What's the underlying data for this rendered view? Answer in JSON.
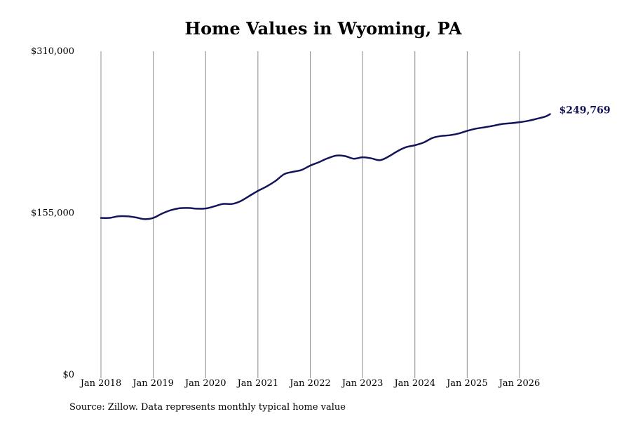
{
  "chart_data": {
    "type": "line",
    "title": "Home Values in Wyoming, PA",
    "source": "Source: Zillow. Data represents monthly typical home value",
    "ylim": [
      0,
      310000
    ],
    "y_ticks": [
      {
        "value": 310000,
        "label": "$310,000"
      },
      {
        "value": 155000,
        "label": "$155,000"
      },
      {
        "value": 0,
        "label": "$0"
      }
    ],
    "x_ticks": [
      {
        "value": "2018-01",
        "label": "Jan 2018"
      },
      {
        "value": "2019-01",
        "label": "Jan 2019"
      },
      {
        "value": "2020-01",
        "label": "Jan 2020"
      },
      {
        "value": "2021-01",
        "label": "Jan 2021"
      },
      {
        "value": "2022-01",
        "label": "Jan 2022"
      },
      {
        "value": "2023-01",
        "label": "Jan 2023"
      },
      {
        "value": "2024-01",
        "label": "Jan 2024"
      },
      {
        "value": "2025-01",
        "label": "Jan 2025"
      },
      {
        "value": "2026-01",
        "label": "Jan 2026"
      }
    ],
    "grid": "vertical",
    "line_color": "#14145a",
    "end_label": "$249,769",
    "series": [
      {
        "points": [
          [
            "2018-01",
            150200
          ],
          [
            "2018-03",
            150300
          ],
          [
            "2018-05",
            151800
          ],
          [
            "2018-07",
            151800
          ],
          [
            "2018-09",
            150700
          ],
          [
            "2018-11",
            149100
          ],
          [
            "2019-01",
            150200
          ],
          [
            "2019-03",
            154400
          ],
          [
            "2019-05",
            157600
          ],
          [
            "2019-07",
            159500
          ],
          [
            "2019-09",
            159800
          ],
          [
            "2019-11",
            159100
          ],
          [
            "2020-01",
            159300
          ],
          [
            "2020-03",
            161300
          ],
          [
            "2020-05",
            163700
          ],
          [
            "2020-07",
            163600
          ],
          [
            "2020-09",
            166300
          ],
          [
            "2020-11",
            171200
          ],
          [
            "2021-01",
            176200
          ],
          [
            "2021-03",
            180400
          ],
          [
            "2021-05",
            185600
          ],
          [
            "2021-07",
            192100
          ],
          [
            "2021-09",
            194400
          ],
          [
            "2021-11",
            196200
          ],
          [
            "2022-01",
            200400
          ],
          [
            "2022-03",
            203700
          ],
          [
            "2022-05",
            207400
          ],
          [
            "2022-07",
            210000
          ],
          [
            "2022-09",
            209500
          ],
          [
            "2022-11",
            207000
          ],
          [
            "2023-01",
            208400
          ],
          [
            "2023-03",
            207300
          ],
          [
            "2023-05",
            205600
          ],
          [
            "2023-07",
            209100
          ],
          [
            "2023-09",
            214200
          ],
          [
            "2023-11",
            218100
          ],
          [
            "2024-01",
            219900
          ],
          [
            "2024-03",
            222500
          ],
          [
            "2024-05",
            226800
          ],
          [
            "2024-07",
            228800
          ],
          [
            "2024-09",
            229500
          ],
          [
            "2024-11",
            231100
          ],
          [
            "2025-01",
            233700
          ],
          [
            "2025-03",
            235800
          ],
          [
            "2025-05",
            237100
          ],
          [
            "2025-07",
            238600
          ],
          [
            "2025-09",
            240300
          ],
          [
            "2025-11",
            241000
          ],
          [
            "2026-01",
            242000
          ],
          [
            "2026-03",
            243300
          ],
          [
            "2026-05",
            245300
          ],
          [
            "2026-07",
            247500
          ],
          [
            "2026-08",
            249769
          ]
        ]
      }
    ]
  }
}
